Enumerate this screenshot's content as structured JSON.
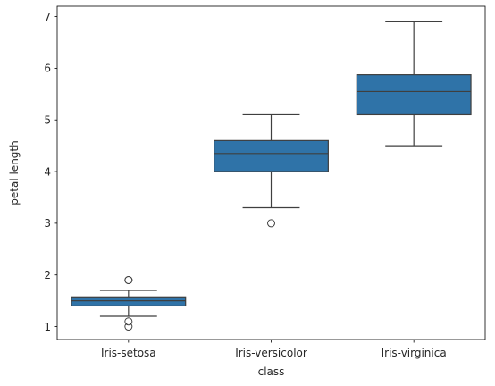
{
  "chart_data": {
    "type": "box",
    "xlabel": "class",
    "ylabel": "petal length",
    "ylim": [
      0.75,
      7.2
    ],
    "yticks": [
      1,
      2,
      3,
      4,
      5,
      6,
      7
    ],
    "grid": false,
    "box_color": "#2f73a8",
    "line_color": "#3f3f3f",
    "categories": [
      "Iris-setosa",
      "Iris-versicolor",
      "Iris-virginica"
    ],
    "boxes": [
      {
        "category": "Iris-setosa",
        "whisker_low": 1.2,
        "q1": 1.4,
        "median": 1.5,
        "q3": 1.575,
        "whisker_high": 1.7,
        "outliers": [
          1.9,
          1.9,
          1.1,
          1.0
        ]
      },
      {
        "category": "Iris-versicolor",
        "whisker_low": 3.3,
        "q1": 4.0,
        "median": 4.35,
        "q3": 4.6,
        "whisker_high": 5.1,
        "outliers": [
          3.0
        ]
      },
      {
        "category": "Iris-virginica",
        "whisker_low": 4.5,
        "q1": 5.1,
        "median": 5.55,
        "q3": 5.875,
        "whisker_high": 6.9,
        "outliers": []
      }
    ]
  }
}
